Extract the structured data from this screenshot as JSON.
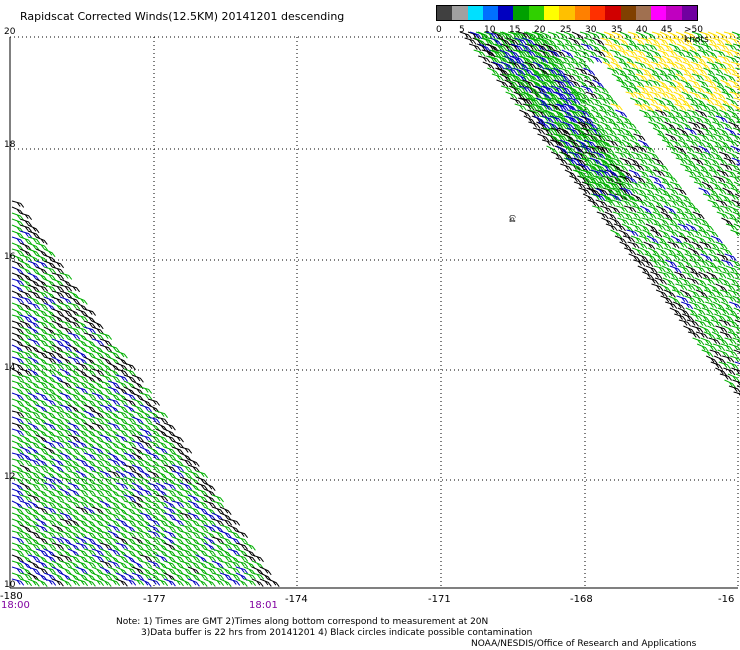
{
  "title": "Rapidscat Corrected Winds(12.5KM) 20141201 descending",
  "colorbar": {
    "labels": [
      "0",
      "5",
      "10",
      "15",
      "20",
      "25",
      "30",
      "35",
      "40",
      "45",
      ">50 knots"
    ],
    "colors": [
      "#404040",
      "#a0a0a0",
      "#00e0ff",
      "#0070ff",
      "#0000c0",
      "#00a000",
      "#30d000",
      "#ffff00",
      "#ffc000",
      "#ff8000",
      "#ff3000",
      "#d00000",
      "#804000",
      "#a07050",
      "#ff00ff",
      "#c000c0",
      "#7000a0"
    ]
  },
  "map": {
    "lat_labels": [
      "20",
      "18",
      "16",
      "14",
      "12",
      "10"
    ],
    "lon_labels": [
      "-180",
      "-177",
      "-174",
      "-171",
      "-168",
      "-16"
    ],
    "time_labels": [
      "18:00",
      "18:01"
    ],
    "island_label": "ଛ",
    "wind_colors": {
      "black": "#000000",
      "green": "#00b000",
      "blue": "#0000c0",
      "yellow": "#ffe000"
    }
  },
  "notes": {
    "line1": "Note: 1) Times are GMT 2)Times along bottom correspond to measurement at 20N",
    "line2": "3)Data buffer is 22 hrs from 20141201 4) Black circles indicate possible contamination",
    "line3": "NOAA/NESDIS/Office of Research and Applications"
  }
}
